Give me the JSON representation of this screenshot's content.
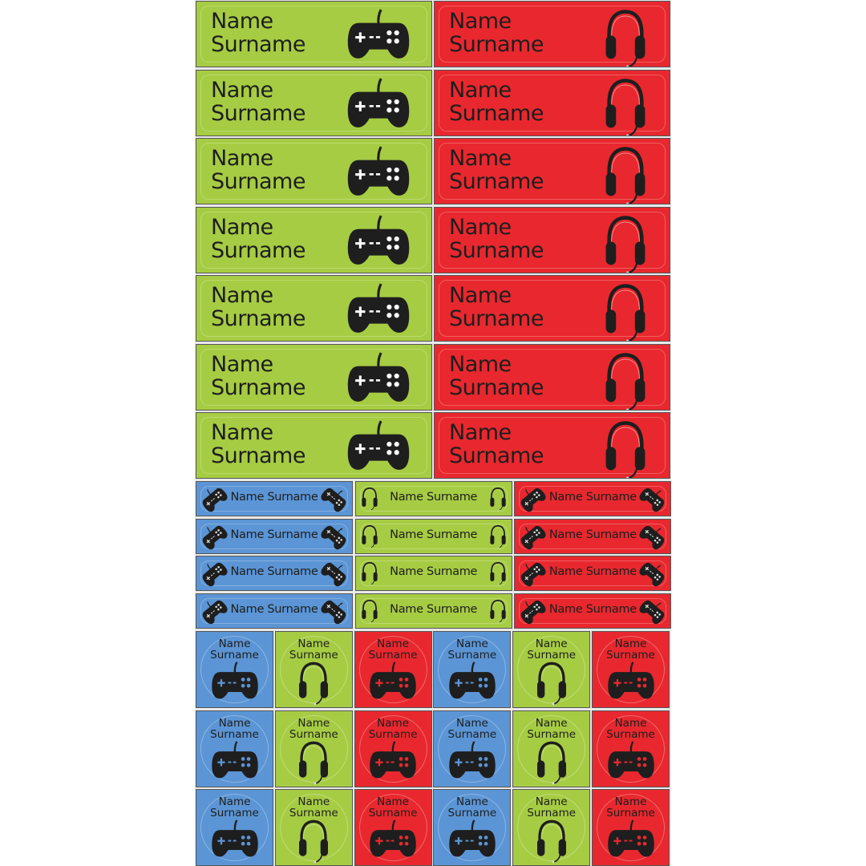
{
  "colors": {
    "green": "#a6cc43",
    "red": "#e8282e",
    "blue": "#5b95d5",
    "text": "#1e1e1e"
  },
  "large_labels": {
    "name": "Name",
    "surname": "Surname",
    "rows": 7,
    "columns": [
      {
        "color": "green",
        "icon": "gamepad-icon"
      },
      {
        "color": "red",
        "icon": "headset-icon"
      }
    ]
  },
  "small_labels": {
    "text": "Name Surname",
    "rows": 4,
    "columns": [
      {
        "color": "blue",
        "icon": "gamepad-icon"
      },
      {
        "color": "green",
        "icon": "headset-icon"
      },
      {
        "color": "red",
        "icon": "gamepad-icon"
      }
    ]
  },
  "square_labels": {
    "name": "Name",
    "surname": "Surname",
    "rows": 3,
    "columns": [
      {
        "color": "blue",
        "icon": "gamepad-icon"
      },
      {
        "color": "green",
        "icon": "headset-icon"
      },
      {
        "color": "red",
        "icon": "gamepad-icon"
      },
      {
        "color": "blue",
        "icon": "gamepad-icon"
      },
      {
        "color": "green",
        "icon": "headset-icon"
      },
      {
        "color": "red",
        "icon": "gamepad-icon"
      }
    ]
  }
}
